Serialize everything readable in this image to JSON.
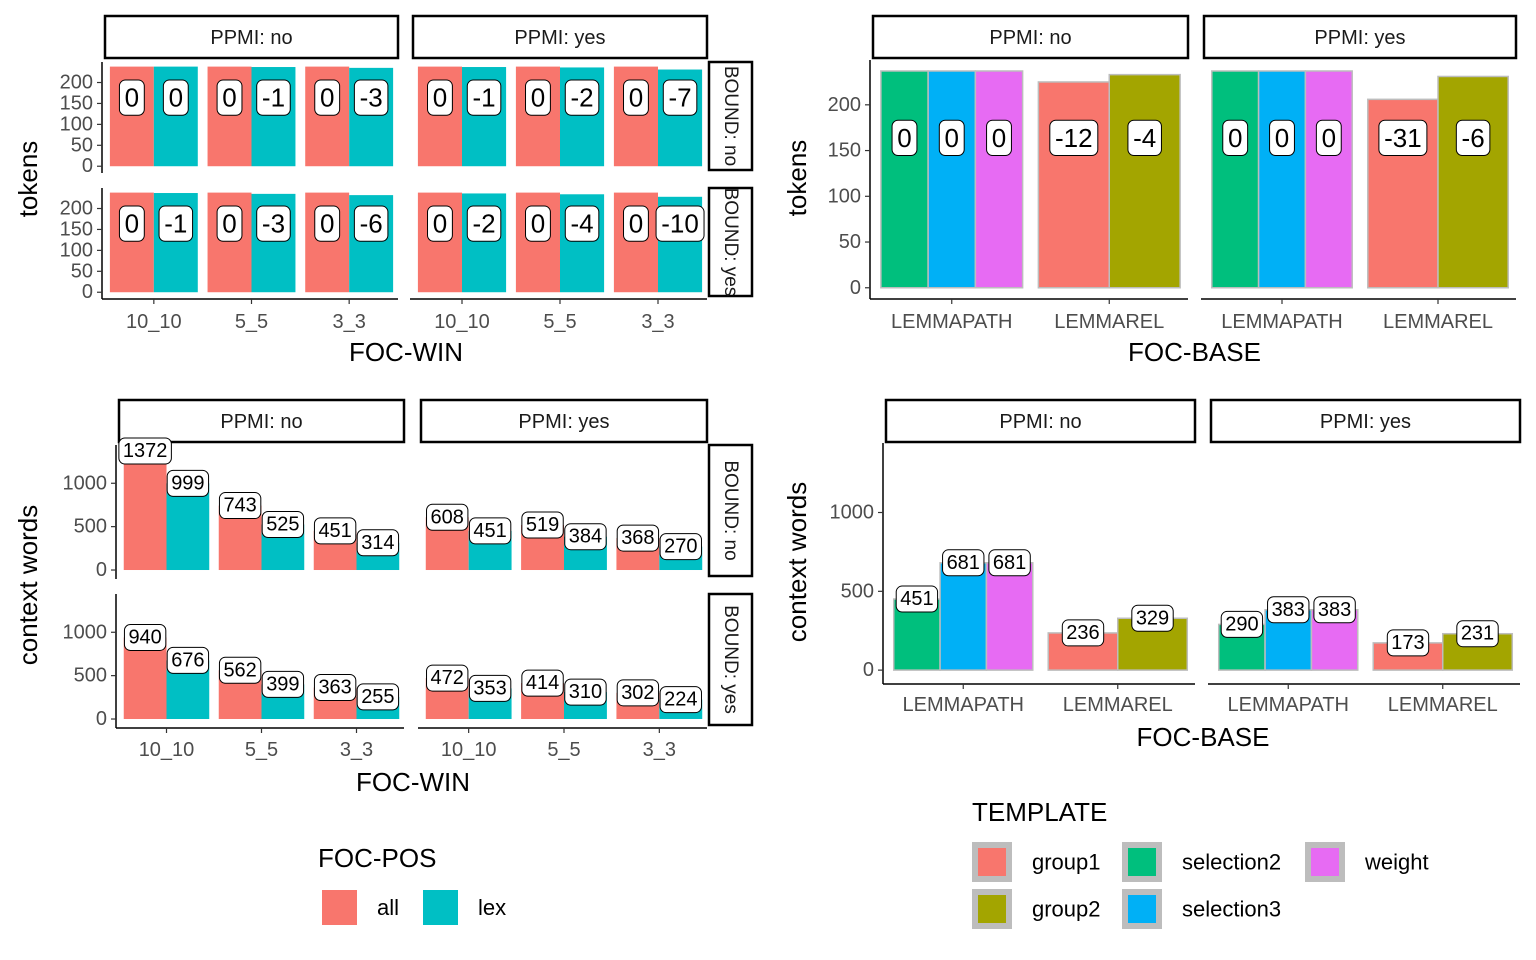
{
  "chart_data": [
    {
      "type": "bar",
      "y_label": "tokens",
      "x_label": "FOC-WIN",
      "facet_cols": [
        "PPMI: no",
        "PPMI: yes"
      ],
      "facet_rows": [
        "BOUND: no",
        "BOUND: yes"
      ],
      "categories": [
        "10_10",
        "5_5",
        "3_3"
      ],
      "series": [
        {
          "color": "#F8766D"
        },
        {
          "color": "#00BFC4"
        }
      ],
      "ylim": [
        -9,
        249
      ],
      "yticks": [
        0,
        50,
        100,
        150,
        200
      ],
      "panels": [
        {
          "series": [
            {
              "values": [
                238,
                238,
                238
              ],
              "differences": [
                0,
                0,
                0
              ]
            },
            {
              "values": [
                238,
                237,
                235
              ],
              "differences": [
                0,
                -1,
                -3
              ]
            }
          ]
        },
        {
          "series": [
            {
              "values": [
                238,
                238,
                238
              ],
              "differences": [
                0,
                0,
                0
              ]
            },
            {
              "values": [
                237,
                236,
                231
              ],
              "differences": [
                -1,
                -2,
                -7
              ]
            }
          ]
        },
        {
          "series": [
            {
              "values": [
                238,
                238,
                238
              ],
              "differences": [
                0,
                0,
                0
              ]
            },
            {
              "values": [
                237,
                235,
                232
              ],
              "differences": [
                -1,
                -3,
                -6
              ]
            }
          ]
        },
        {
          "series": [
            {
              "values": [
                238,
                238,
                238
              ],
              "differences": [
                0,
                0,
                0
              ]
            },
            {
              "values": [
                236,
                234,
                228
              ],
              "differences": [
                -2,
                -4,
                -10
              ]
            }
          ]
        }
      ]
    },
    {
      "type": "bar",
      "y_label": "tokens",
      "x_label": "FOC-BASE",
      "facet_cols": [
        "PPMI: no",
        "PPMI: yes"
      ],
      "categories": [
        "LEMMAPATH",
        "LEMMAREL"
      ],
      "series": [
        {
          "color": "#F8766D"
        },
        {
          "color": "#A3A500"
        },
        {
          "color": "#00BF7D"
        },
        {
          "color": "#00B0F6"
        },
        {
          "color": "#E76BF3"
        }
      ],
      "ylim": [
        -9,
        249
      ],
      "yticks": [
        0,
        50,
        100,
        150,
        200
      ],
      "panels": [
        {
          "series": [
            {
              "values": [
                null,
                225
              ],
              "differences": [
                null,
                -12
              ]
            },
            {
              "values": [
                null,
                233
              ],
              "differences": [
                null,
                -4
              ]
            },
            {
              "values": [
                237,
                null
              ],
              "differences": [
                0,
                null
              ]
            },
            {
              "values": [
                237,
                null
              ],
              "differences": [
                0,
                null
              ]
            },
            {
              "values": [
                237,
                null
              ],
              "differences": [
                0,
                null
              ]
            }
          ]
        },
        {
          "series": [
            {
              "values": [
                null,
                206
              ],
              "differences": [
                null,
                -31
              ]
            },
            {
              "values": [
                null,
                231
              ],
              "differences": [
                null,
                -6
              ]
            },
            {
              "values": [
                237,
                null
              ],
              "differences": [
                0,
                null
              ]
            },
            {
              "values": [
                237,
                null
              ],
              "differences": [
                0,
                null
              ]
            },
            {
              "values": [
                237,
                null
              ],
              "differences": [
                0,
                null
              ]
            }
          ]
        }
      ]
    },
    {
      "type": "bar",
      "y_label": "context words",
      "x_label": "FOC-WIN",
      "facet_cols": [
        "PPMI: no",
        "PPMI: yes"
      ],
      "facet_rows": [
        "BOUND: no",
        "BOUND: yes"
      ],
      "categories": [
        "10_10",
        "5_5",
        "3_3"
      ],
      "legend_title": "FOC-POS",
      "series": [
        {
          "name": "all",
          "color": "#F8766D"
        },
        {
          "name": "lex",
          "color": "#00BFC4"
        }
      ],
      "ylim": [
        -69,
        1441
      ],
      "yticks": [
        0,
        500,
        1000
      ],
      "panels": [
        {
          "series": [
            {
              "values": [
                1372,
                743,
                451
              ]
            },
            {
              "values": [
                999,
                525,
                314
              ]
            }
          ]
        },
        {
          "series": [
            {
              "values": [
                608,
                519,
                368
              ]
            },
            {
              "values": [
                451,
                384,
                270
              ]
            }
          ]
        },
        {
          "series": [
            {
              "values": [
                940,
                562,
                363
              ]
            },
            {
              "values": [
                676,
                399,
                255
              ]
            }
          ]
        },
        {
          "series": [
            {
              "values": [
                472,
                414,
                302
              ]
            },
            {
              "values": [
                353,
                310,
                224
              ]
            }
          ]
        }
      ]
    },
    {
      "type": "bar",
      "y_label": "context words",
      "x_label": "FOC-BASE",
      "facet_cols": [
        "PPMI: no",
        "PPMI: yes"
      ],
      "categories": [
        "LEMMAPATH",
        "LEMMAREL"
      ],
      "legend_title": "TEMPLATE",
      "series": [
        {
          "name": "group1",
          "color": "#F8766D"
        },
        {
          "name": "group2",
          "color": "#A3A500"
        },
        {
          "name": "selection2",
          "color": "#00BF7D"
        },
        {
          "name": "selection3",
          "color": "#00B0F6"
        },
        {
          "name": "weight",
          "color": "#E76BF3"
        }
      ],
      "ylim": [
        -69,
        1441
      ],
      "yticks": [
        0,
        500,
        1000
      ],
      "panels": [
        {
          "series": [
            {
              "values": [
                null,
                236
              ]
            },
            {
              "values": [
                null,
                329
              ]
            },
            {
              "values": [
                451,
                null
              ]
            },
            {
              "values": [
                681,
                null
              ]
            },
            {
              "values": [
                681,
                null
              ]
            }
          ]
        },
        {
          "series": [
            {
              "values": [
                null,
                173
              ]
            },
            {
              "values": [
                null,
                231
              ]
            },
            {
              "values": [
                290,
                null
              ]
            },
            {
              "values": [
                383,
                null
              ]
            },
            {
              "values": [
                383,
                null
              ]
            }
          ]
        }
      ]
    }
  ]
}
